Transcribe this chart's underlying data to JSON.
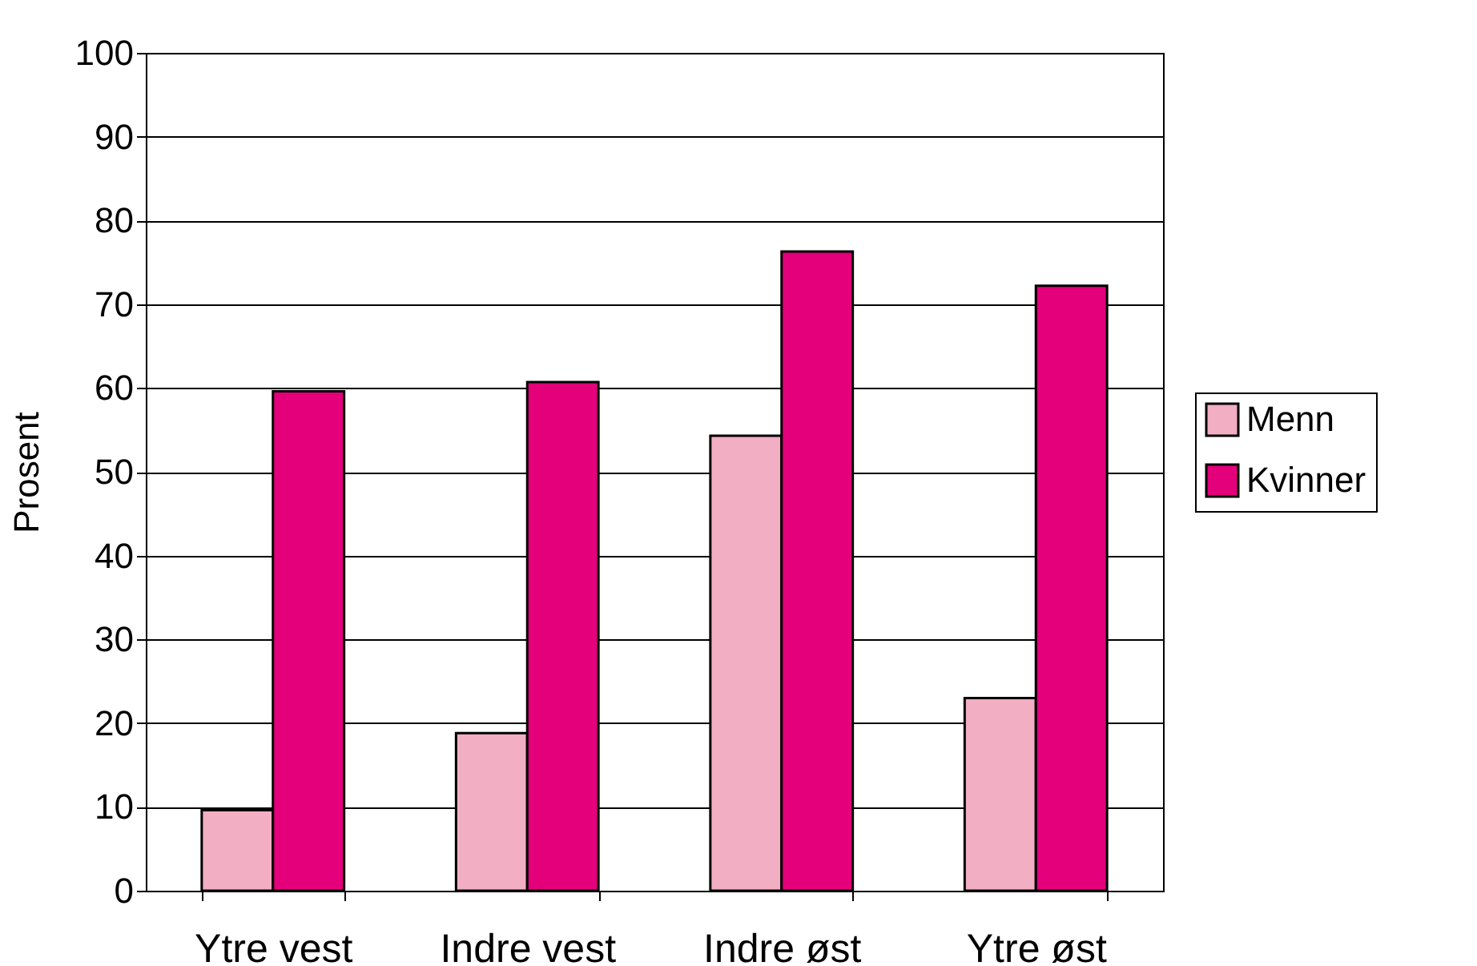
{
  "chart_data": {
    "type": "bar",
    "ylabel": "Prosent",
    "categories": [
      "Ytre vest",
      "Indre vest",
      "Indre øst",
      "Ytre øst"
    ],
    "series": [
      {
        "name": "Menn",
        "color": "#f2aec3",
        "values": [
          9.6,
          18.8,
          54.3,
          23.0
        ]
      },
      {
        "name": "Kvinner",
        "color": "#e3007a",
        "values": [
          59.6,
          60.7,
          76.3,
          72.2
        ]
      }
    ],
    "ylim": [
      0,
      100
    ],
    "yticks": [
      0,
      10,
      20,
      30,
      40,
      50,
      60,
      70,
      80,
      90,
      100
    ],
    "grid": "y",
    "legend": "right"
  }
}
